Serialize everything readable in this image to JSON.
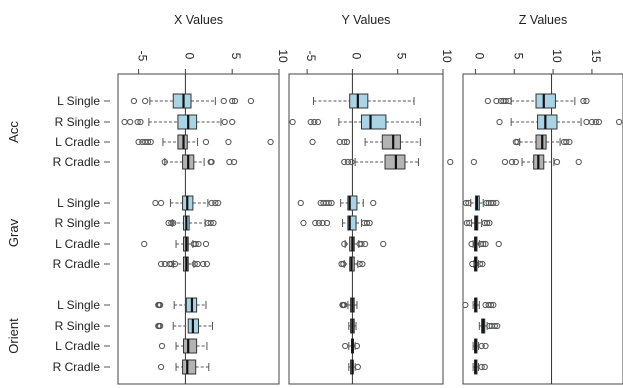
{
  "chart_data": {
    "type": "boxplot",
    "groups": [
      "Acc",
      "Grav",
      "Orient"
    ],
    "conditions": [
      "L Single",
      "R Single",
      "L Cradle",
      "R Cradle"
    ],
    "colors": {
      "single": "#a8d4e6",
      "cradle": "#b3b3b3"
    },
    "panels": [
      {
        "title": "X Values",
        "ticks": [
          -5,
          0,
          5,
          10
        ],
        "tick_labels": [
          "-5",
          "0",
          "5",
          "10"
        ],
        "range": [
          -7.2,
          10.0
        ],
        "reference_line": 0,
        "boxes": [
          {
            "group": "Acc",
            "condition": "L Single",
            "color": "single",
            "wlo": -3.8,
            "q1": -1.3,
            "med": -0.2,
            "q3": 0.6,
            "whi": 3.2,
            "outliers": [
              -5.5,
              -4.3,
              4.1,
              5.0,
              5.3,
              7.0
            ]
          },
          {
            "group": "Acc",
            "condition": "R Single",
            "color": "single",
            "wlo": -3.9,
            "q1": -0.8,
            "med": 0.3,
            "q3": 1.2,
            "whi": 3.8,
            "outliers": [
              -6.5,
              -5.9,
              -5.1,
              -4.8,
              4.2,
              5.0
            ]
          },
          {
            "group": "Acc",
            "condition": "L Cradle",
            "color": "cradle",
            "wlo": -2.4,
            "q1": -0.8,
            "med": -0.2,
            "q3": 0.2,
            "whi": 1.3,
            "outliers": [
              -5.0,
              -4.6,
              -4.3,
              -4.0,
              -3.7,
              2.2,
              4.6,
              9.1
            ]
          },
          {
            "group": "Acc",
            "condition": "R Cradle",
            "color": "cradle",
            "wlo": -2.2,
            "q1": -0.3,
            "med": 0.3,
            "q3": 0.9,
            "whi": 2.0,
            "outliers": [
              -2.2,
              2.7,
              2.8,
              4.7,
              5.2
            ]
          },
          {
            "group": "Grav",
            "condition": "L Single",
            "color": "single",
            "wlo": -1.6,
            "q1": -0.3,
            "med": 0.2,
            "q3": 0.8,
            "whi": 2.4,
            "outliers": [
              -3.2,
              -2.6,
              2.8,
              3.2,
              3.5
            ]
          },
          {
            "group": "Grav",
            "condition": "R Single",
            "color": "single",
            "wlo": -1.4,
            "q1": -0.2,
            "med": 0.1,
            "q3": 0.4,
            "whi": 2.1,
            "outliers": [
              -1.8,
              -1.5,
              -1.3,
              2.4,
              2.7,
              3.0
            ]
          },
          {
            "group": "Grav",
            "condition": "L Cradle",
            "color": "cradle",
            "wlo": -1.0,
            "q1": -0.2,
            "med": 0.1,
            "q3": 0.3,
            "whi": 0.8,
            "outliers": [
              -4.4,
              0.9,
              1.1,
              1.4,
              2.2
            ]
          },
          {
            "group": "Grav",
            "condition": "R Cradle",
            "color": "cradle",
            "wlo": -1.3,
            "q1": -0.2,
            "med": 0.1,
            "q3": 0.3,
            "whi": 0.9,
            "outliers": [
              -2.6,
              -2.2,
              -1.7,
              -1.5,
              -1.1,
              1.0,
              1.3,
              1.9,
              2.3
            ]
          },
          {
            "group": "Orient",
            "condition": "L Single",
            "color": "single",
            "wlo": -1.2,
            "q1": 0.1,
            "med": 0.7,
            "q3": 1.2,
            "whi": 2.2,
            "outliers": [
              -2.9,
              -2.8,
              -2.7
            ]
          },
          {
            "group": "Orient",
            "condition": "R Single",
            "color": "single",
            "wlo": -1.3,
            "q1": 0.3,
            "med": 0.8,
            "q3": 1.4,
            "whi": 2.9,
            "outliers": [
              -2.9,
              -2.8,
              -2.7
            ]
          },
          {
            "group": "Orient",
            "condition": "L Cradle",
            "color": "cradle",
            "wlo": -1.0,
            "q1": -0.2,
            "med": 0.3,
            "q3": 1.2,
            "whi": 2.3,
            "outliers": [
              -2.5
            ]
          },
          {
            "group": "Orient",
            "condition": "R Cradle",
            "color": "cradle",
            "wlo": -1.0,
            "q1": -0.3,
            "med": 0.2,
            "q3": 1.1,
            "whi": 2.5,
            "outliers": [
              -2.6
            ]
          }
        ]
      },
      {
        "title": "Y Values",
        "ticks": [
          -5,
          0,
          5,
          10
        ],
        "tick_labels": [
          "-5",
          "0",
          "5",
          "10"
        ],
        "range": [
          -7.0,
          10.0
        ],
        "reference_line": 0,
        "boxes": [
          {
            "group": "Acc",
            "condition": "L Single",
            "color": "single",
            "wlo": -4.3,
            "q1": -0.3,
            "med": 0.6,
            "q3": 1.7,
            "whi": 6.8,
            "outliers": []
          },
          {
            "group": "Acc",
            "condition": "R Single",
            "color": "single",
            "wlo": -1.5,
            "q1": 1.0,
            "med": 2.0,
            "q3": 3.7,
            "whi": 7.5,
            "outliers": [
              -6.6,
              -4.6,
              -4.2,
              -3.8
            ]
          },
          {
            "group": "Acc",
            "condition": "L Cradle",
            "color": "cradle",
            "wlo": 1.4,
            "q1": 3.3,
            "med": 4.5,
            "q3": 5.3,
            "whi": 7.5,
            "outliers": [
              -4.4,
              -1.4,
              -0.9,
              -0.6
            ]
          },
          {
            "group": "Acc",
            "condition": "R Cradle",
            "color": "cradle",
            "wlo": 0.3,
            "q1": 3.6,
            "med": 4.8,
            "q3": 5.8,
            "whi": 7.3,
            "outliers": [
              -0.9,
              -0.5,
              -0.1,
              10.8
            ]
          },
          {
            "group": "Grav",
            "condition": "L Single",
            "color": "single",
            "wlo": -1.3,
            "q1": -0.5,
            "med": -0.3,
            "q3": 0.5,
            "whi": 1.2,
            "outliers": [
              -5.7,
              -3.5,
              -3.2,
              -2.9,
              -2.6,
              -2.3,
              2.3
            ]
          },
          {
            "group": "Grav",
            "condition": "R Single",
            "color": "single",
            "wlo": -1.1,
            "q1": -0.5,
            "med": -0.3,
            "q3": 0.4,
            "whi": 1.0,
            "outliers": [
              -5.4,
              -4.1,
              -3.7,
              -3.3,
              -2.8,
              1.3,
              1.6,
              1.9
            ]
          },
          {
            "group": "Grav",
            "condition": "L Cradle",
            "color": "cradle",
            "wlo": -0.8,
            "q1": -0.3,
            "med": 0.0,
            "q3": 0.2,
            "whi": 0.7,
            "outliers": [
              -0.9,
              0.8,
              1.0,
              1.4,
              3.4
            ]
          },
          {
            "group": "Grav",
            "condition": "R Cradle",
            "color": "cradle",
            "wlo": -0.9,
            "q1": -0.3,
            "med": -0.1,
            "q3": 0.2,
            "whi": 0.6,
            "outliers": [
              -1.2,
              -1.0,
              0.8,
              1.1
            ]
          },
          {
            "group": "Orient",
            "condition": "L Single",
            "color": "single",
            "wlo": -0.5,
            "q1": -0.2,
            "med": 0.0,
            "q3": 0.2,
            "whi": 0.5,
            "outliers": [
              -1.1,
              -1.0,
              -0.9
            ]
          },
          {
            "group": "Orient",
            "condition": "R Single",
            "color": "single",
            "wlo": -0.4,
            "q1": -0.2,
            "med": 0.0,
            "q3": 0.2,
            "whi": 0.4,
            "outliers": []
          },
          {
            "group": "Orient",
            "condition": "L Cradle",
            "color": "cradle",
            "wlo": -0.4,
            "q1": -0.1,
            "med": 0.0,
            "q3": 0.1,
            "whi": 0.3,
            "outliers": [
              -0.8,
              0.5
            ]
          },
          {
            "group": "Orient",
            "condition": "R Cradle",
            "color": "cradle",
            "wlo": -0.4,
            "q1": -0.2,
            "med": 0.0,
            "q3": 0.1,
            "whi": 0.3,
            "outliers": [
              0.6
            ]
          }
        ]
      },
      {
        "title": "Z Values",
        "ticks": [
          0,
          5,
          10,
          15
        ],
        "tick_labels": [
          "0",
          "5",
          "10",
          "15"
        ],
        "range": [
          -1.6,
          19.0
        ],
        "reference_line": 9.8,
        "boxes": [
          {
            "group": "Acc",
            "condition": "L Single",
            "color": "single",
            "wlo": 4.6,
            "q1": 7.8,
            "med": 8.8,
            "q3": 10.3,
            "whi": 12.8,
            "outliers": [
              1.6,
              2.7,
              3.3,
              3.6,
              3.9,
              4.3,
              13.9,
              14.3
            ]
          },
          {
            "group": "Acc",
            "condition": "R Single",
            "color": "single",
            "wlo": 4.6,
            "q1": 8.0,
            "med": 9.0,
            "q3": 10.5,
            "whi": 13.6,
            "outliers": [
              3.1,
              14.3,
              15.0,
              15.5,
              15.9,
              18.5
            ]
          },
          {
            "group": "Acc",
            "condition": "L Cradle",
            "color": "cradle",
            "wlo": 5.7,
            "q1": 7.8,
            "med": 8.6,
            "q3": 9.1,
            "whi": 10.9,
            "outliers": [
              5.2,
              5.4,
              11.4,
              11.7,
              12.1
            ]
          },
          {
            "group": "Acc",
            "condition": "R Cradle",
            "color": "cradle",
            "wlo": 6.0,
            "q1": 7.5,
            "med": 8.1,
            "q3": 8.8,
            "whi": 10.1,
            "outliers": [
              -0.2,
              3.8,
              4.7,
              5.2,
              10.5,
              13.3
            ]
          },
          {
            "group": "Grav",
            "condition": "L Single",
            "color": "single",
            "wlo": -0.6,
            "q1": 0.0,
            "med": 0.2,
            "q3": 0.5,
            "whi": 1.0,
            "outliers": [
              -1.2,
              -0.9,
              1.4,
              1.7,
              2.0,
              2.3,
              2.7
            ]
          },
          {
            "group": "Grav",
            "condition": "R Single",
            "color": "single",
            "wlo": -0.5,
            "q1": -0.1,
            "med": 0.1,
            "q3": 0.3,
            "whi": 0.8,
            "outliers": [
              -1.1,
              -0.8,
              1.2,
              1.5,
              1.8
            ]
          },
          {
            "group": "Grav",
            "condition": "L Cradle",
            "color": "cradle",
            "wlo": -0.3,
            "q1": -0.1,
            "med": 0.0,
            "q3": 0.2,
            "whi": 0.5,
            "outliers": [
              -0.5,
              0.7,
              1.0,
              1.3,
              3.0
            ]
          },
          {
            "group": "Grav",
            "condition": "R Cradle",
            "color": "cradle",
            "wlo": -0.2,
            "q1": -0.1,
            "med": 0.0,
            "q3": 0.2,
            "whi": 0.4,
            "outliers": [
              -0.4,
              0.6,
              0.9
            ]
          },
          {
            "group": "Orient",
            "condition": "L Single",
            "color": "single",
            "wlo": -0.3,
            "q1": -0.1,
            "med": 0.0,
            "q3": 0.2,
            "whi": 0.5,
            "outliers": [
              -1.3,
              1.3,
              1.7,
              2.0,
              2.3
            ]
          },
          {
            "group": "Orient",
            "condition": "R Single",
            "color": "single",
            "wlo": 0.5,
            "q1": 0.8,
            "med": 1.0,
            "q3": 1.2,
            "whi": 1.5,
            "outliers": [
              1.8,
              2.1,
              2.5,
              2.8
            ]
          },
          {
            "group": "Orient",
            "condition": "L Cradle",
            "color": "cradle",
            "wlo": -0.3,
            "q1": -0.1,
            "med": 0.0,
            "q3": 0.2,
            "whi": 0.4,
            "outliers": [
              0.8,
              1.3
            ]
          },
          {
            "group": "Orient",
            "condition": "R Cradle",
            "color": "cradle",
            "wlo": -0.3,
            "q1": -0.1,
            "med": 0.0,
            "q3": 0.2,
            "whi": 0.4,
            "outliers": [
              0.8,
              1.2
            ]
          }
        ]
      }
    ]
  }
}
